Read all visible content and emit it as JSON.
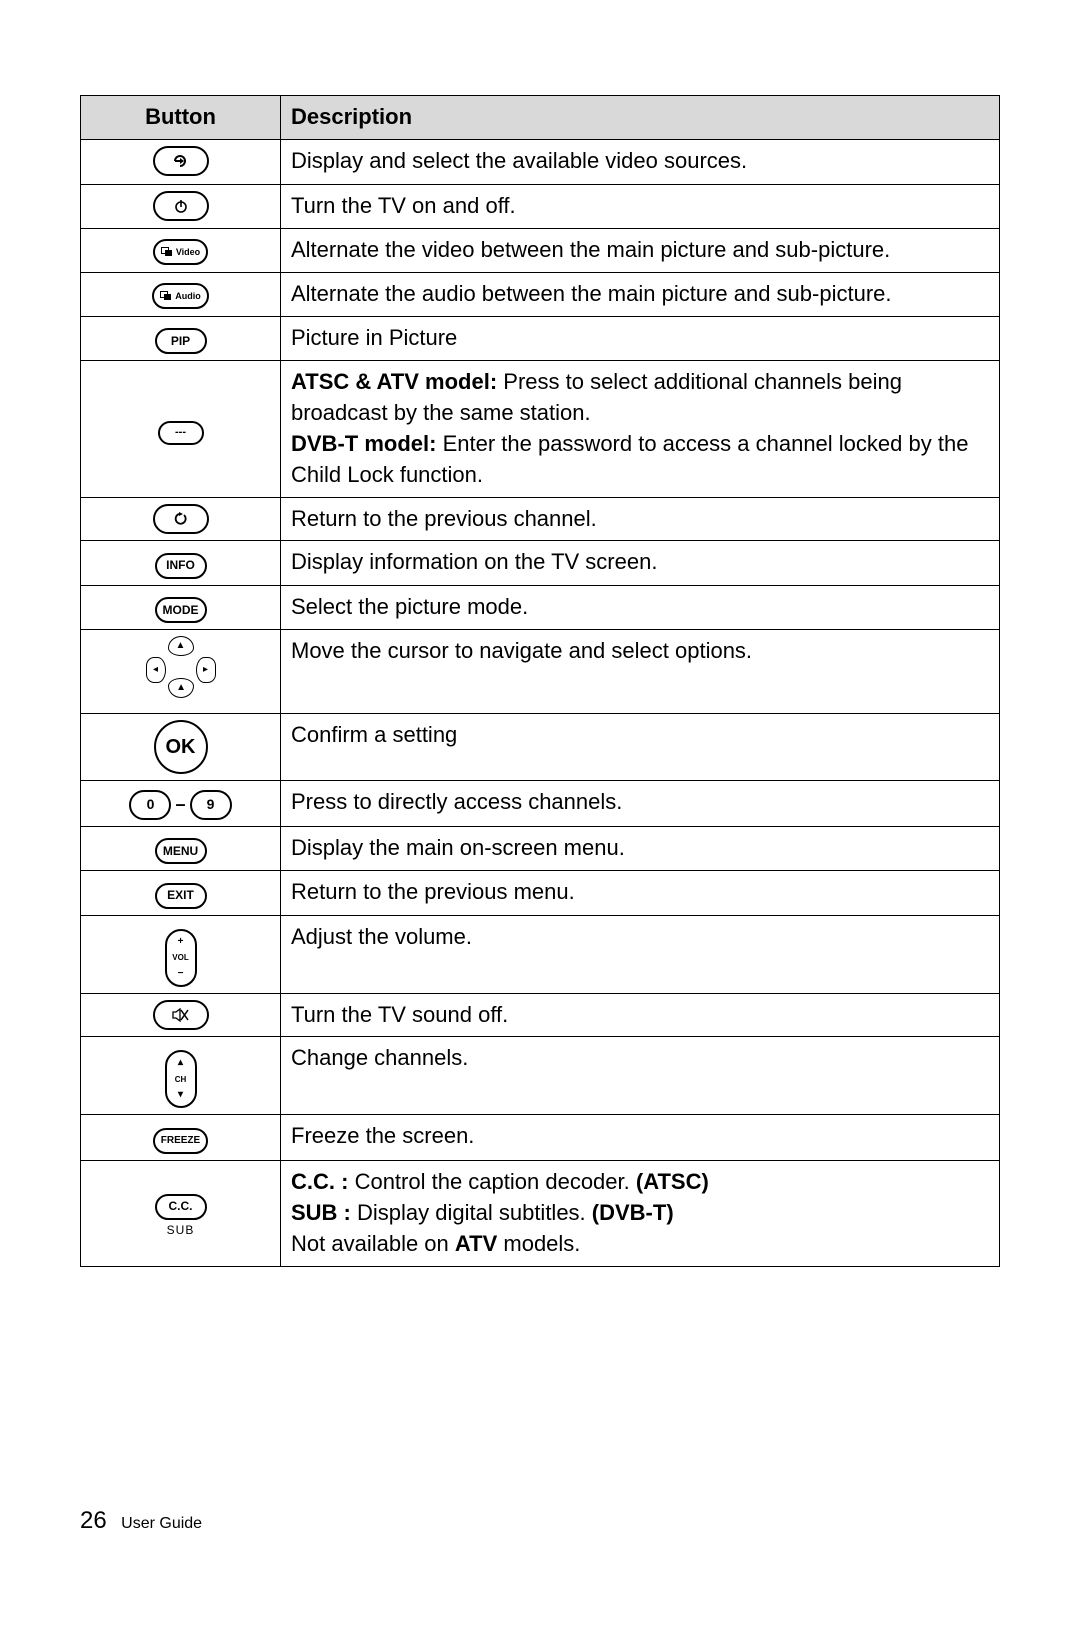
{
  "table": {
    "headers": {
      "button": "Button",
      "description": "Description"
    },
    "rows": [
      {
        "icon": "source",
        "desc": "Display and select the available video sources."
      },
      {
        "icon": "power",
        "desc": "Turn the TV on and off."
      },
      {
        "icon": "video",
        "label": "Video",
        "desc": "Alternate the video between the main picture and sub-picture."
      },
      {
        "icon": "audio",
        "label": "Audio",
        "desc": "Alternate the audio between the main picture and sub-picture."
      },
      {
        "icon": "pip",
        "label": "PIP",
        "desc": "Picture in Picture"
      },
      {
        "icon": "dash",
        "label": "---",
        "desc_rich": [
          {
            "b": "ATSC & ATV model:"
          },
          " Press to select additional channels being broadcast by the same station.",
          "BR",
          {
            "b": "DVB-T model:"
          },
          " Enter the password to access a channel locked by the Child Lock function."
        ]
      },
      {
        "icon": "return",
        "desc": "Return to the previous channel."
      },
      {
        "icon": "info",
        "label": "INFO",
        "desc": "Display information on the TV screen."
      },
      {
        "icon": "mode",
        "label": "MODE",
        "desc": "Select the picture mode."
      },
      {
        "icon": "dpad",
        "desc": "Move the cursor to navigate and select options."
      },
      {
        "icon": "ok",
        "label": "OK",
        "desc": "Confirm a setting"
      },
      {
        "icon": "numpad",
        "labels": [
          "0",
          "9"
        ],
        "desc": "Press to directly access channels."
      },
      {
        "icon": "menu",
        "label": "MENU",
        "desc": "Display the main on-screen menu."
      },
      {
        "icon": "exit",
        "label": "EXIT",
        "desc": "Return to the previous menu."
      },
      {
        "icon": "vol",
        "label": "VOL",
        "desc": "Adjust the volume."
      },
      {
        "icon": "mute",
        "desc": "Turn the TV sound off."
      },
      {
        "icon": "ch",
        "label": "CH",
        "desc": "Change channels."
      },
      {
        "icon": "freeze",
        "label": "FREEZE",
        "desc": "Freeze the screen."
      },
      {
        "icon": "cc",
        "label": "C.C.",
        "sublabel": "SUB",
        "desc_rich": [
          {
            "b": "C.C. :"
          },
          " Control the caption decoder. ",
          {
            "b": "(ATSC)"
          },
          "BR",
          {
            "b": "SUB :"
          },
          " Display digital subtitles. ",
          {
            "b": "(DVB-T)"
          },
          "BR",
          "Not available on ",
          {
            "b": "ATV"
          },
          " models."
        ]
      }
    ]
  },
  "footer": {
    "page": "26",
    "title": "User Guide"
  },
  "colors": {
    "header_bg": "#d9d9d9",
    "border": "#000000",
    "text": "#000000",
    "bg": "#ffffff"
  }
}
